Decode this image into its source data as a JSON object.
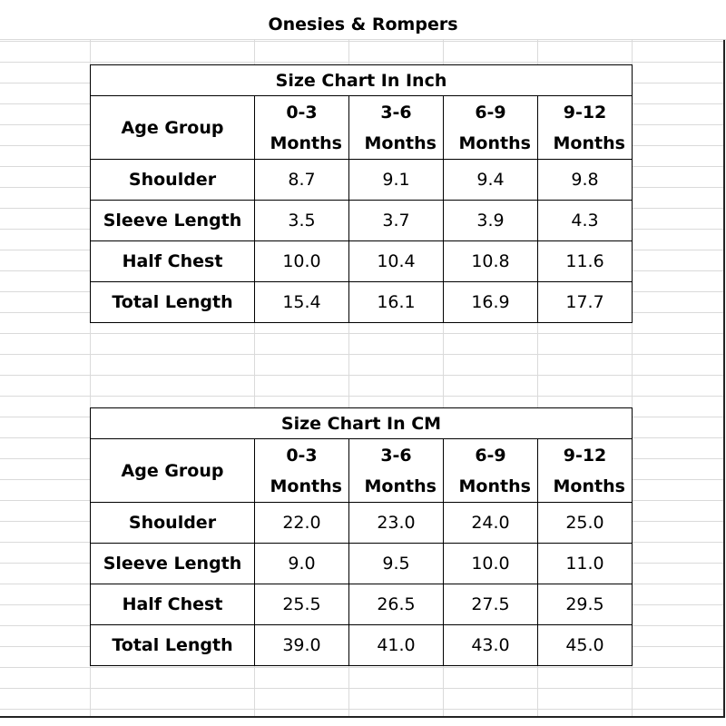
{
  "title": "Onesies & Rompers",
  "tables": [
    {
      "title": "Size Chart In Inch",
      "header": [
        "Age Group",
        "0-3 Months",
        "3-6 Months",
        "6-9 Months",
        "9-12 Months"
      ],
      "rows": [
        [
          "Shoulder",
          "8.7",
          "9.1",
          "9.4",
          "9.8"
        ],
        [
          "Sleeve Length",
          "3.5",
          "3.7",
          "3.9",
          "4.3"
        ],
        [
          "Half Chest",
          "10.0",
          "10.4",
          "10.8",
          "11.6"
        ],
        [
          "Total Length",
          "15.4",
          "16.1",
          "16.9",
          "17.7"
        ]
      ]
    },
    {
      "title": "Size Chart In CM",
      "header": [
        "Age Group",
        "0-3 Months",
        "3-6 Months",
        "6-9 Months",
        "9-12 Months"
      ],
      "rows": [
        [
          "Shoulder",
          "22.0",
          "23.0",
          "24.0",
          "25.0"
        ],
        [
          "Sleeve Length",
          "9.0",
          "9.5",
          "10.0",
          "11.0"
        ],
        [
          "Half Chest",
          "25.5",
          "26.5",
          "27.5",
          "29.5"
        ],
        [
          "Total Length",
          "39.0",
          "41.0",
          "43.0",
          "45.0"
        ]
      ]
    }
  ]
}
